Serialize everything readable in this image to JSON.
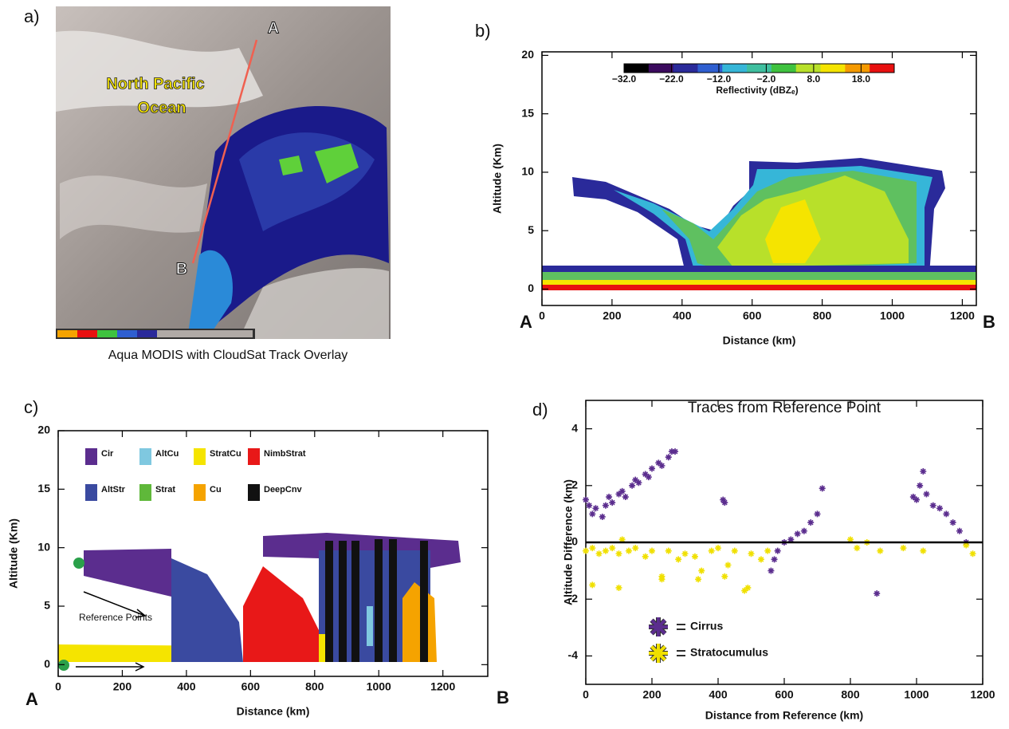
{
  "panel_labels": [
    "a)",
    "b)",
    "c)",
    "d)"
  ],
  "panel_a": {
    "caption": "Aqua MODIS with CloudSat Track Overlay",
    "place": [
      "North Pacific",
      "Ocean"
    ],
    "track_start": "A",
    "track_end": "B"
  },
  "chart_data": [
    {
      "type": "radar-section",
      "x_label": "Distance (km)",
      "y_label": "Altitude (Km)",
      "xlim": [
        0,
        1240
      ],
      "xticks": [
        0,
        200,
        400,
        600,
        800,
        1000,
        1200
      ],
      "ylim": [
        -1.4,
        20.3
      ],
      "yticks": [
        0,
        5,
        10,
        15,
        20
      ],
      "start_label": "A",
      "end_label": "B",
      "colorbar": {
        "label": "Reflectivity (dBZₑ)",
        "lim": [
          -32,
          25
        ],
        "colors": [
          "#000000",
          "#3b0a5e",
          "#2a2a9a",
          "#2f5fd0",
          "#36b6d8",
          "#3fbf9f",
          "#3fc23f",
          "#b8e02a",
          "#f5e400",
          "#f59a00",
          "#e81010"
        ],
        "ticks": [
          {
            "value": -32,
            "label": "−32.0"
          },
          {
            "value": -22,
            "label": "−22.0"
          },
          {
            "value": -12,
            "label": "−12.0"
          },
          {
            "value": -2,
            "label": "−2.0"
          },
          {
            "value": 8,
            "label": "8.0"
          },
          {
            "value": 18,
            "label": "18.0"
          }
        ]
      }
    },
    {
      "type": "cloud-class",
      "x_label": "Distance (km)",
      "y_label": "Altitude (Km)",
      "xlim": [
        0,
        1340
      ],
      "xticks": [
        0,
        200,
        400,
        600,
        800,
        1000,
        1200
      ],
      "ylim": [
        -1,
        20
      ],
      "yticks": [
        0,
        5,
        10,
        15,
        20
      ],
      "start_label": "A",
      "end_label": "B",
      "annotation": "Reference Points",
      "series": [
        {
          "name": "Cir",
          "color": "#5b2d8e"
        },
        {
          "name": "AltCu",
          "color": "#7fc8e0"
        },
        {
          "name": "StratCu",
          "color": "#f5e400"
        },
        {
          "name": "NimbStrat",
          "color": "#e81818"
        },
        {
          "name": "AltStr",
          "color": "#3a4aa0"
        },
        {
          "name": "Strat",
          "color": "#5fb83a"
        },
        {
          "name": "Cu",
          "color": "#f5a300"
        },
        {
          "name": "DeepCnv",
          "color": "#111111"
        }
      ]
    },
    {
      "type": "scatter",
      "title": "Traces from Reference Point",
      "x_label": "Distance from Reference (km)",
      "y_label": "Altitude Difference (km)",
      "xlim": [
        0,
        1200
      ],
      "xticks": [
        0,
        200,
        400,
        600,
        800,
        1000,
        1200
      ],
      "ylim": [
        -5,
        5
      ],
      "yticks": [
        -4,
        -2,
        0,
        2,
        4
      ],
      "series": [
        {
          "name": "Cirrus",
          "color": "#5b2d8e",
          "x": [
            0,
            10,
            20,
            30,
            50,
            60,
            70,
            80,
            100,
            110,
            120,
            140,
            150,
            160,
            180,
            190,
            200,
            220,
            230,
            250,
            260,
            270,
            415,
            420,
            560,
            570,
            580,
            600,
            620,
            640,
            660,
            680,
            700,
            715,
            880,
            990,
            1000,
            1010,
            1020,
            1030,
            1050,
            1070,
            1090,
            1110,
            1130,
            1150
          ],
          "values": [
            1.5,
            1.3,
            1.0,
            1.2,
            0.9,
            1.3,
            1.6,
            1.4,
            1.7,
            1.8,
            1.6,
            2.0,
            2.2,
            2.1,
            2.4,
            2.3,
            2.6,
            2.8,
            2.7,
            3.0,
            3.2,
            3.2,
            1.5,
            1.4,
            -1.0,
            -0.6,
            -0.3,
            0.0,
            0.1,
            0.3,
            0.4,
            0.7,
            1.0,
            1.9,
            -1.8,
            1.6,
            1.5,
            2.0,
            2.5,
            1.7,
            1.3,
            1.2,
            1.0,
            0.7,
            0.4,
            0.0
          ]
        },
        {
          "name": "Stratocumulus",
          "color": "#f0e000",
          "x": [
            0,
            20,
            40,
            60,
            80,
            100,
            110,
            130,
            150,
            180,
            200,
            230,
            250,
            280,
            300,
            330,
            350,
            380,
            400,
            430,
            450,
            480,
            500,
            530,
            550,
            20,
            100,
            230,
            340,
            420,
            490,
            800,
            820,
            850,
            890,
            960,
            1020,
            1150,
            1170
          ],
          "values": [
            -0.3,
            -0.2,
            -0.4,
            -0.3,
            -0.2,
            -0.4,
            0.1,
            -0.3,
            -0.2,
            -0.5,
            -0.3,
            -1.3,
            -0.3,
            -0.6,
            -0.4,
            -0.5,
            -1.0,
            -0.3,
            -0.2,
            -0.8,
            -0.3,
            -1.7,
            -0.4,
            -0.6,
            -0.3,
            -1.5,
            -1.6,
            -1.2,
            -1.3,
            -1.2,
            -1.6,
            0.1,
            -0.2,
            0.0,
            -0.3,
            -0.2,
            -0.3,
            -0.1,
            -0.4
          ]
        }
      ]
    }
  ]
}
